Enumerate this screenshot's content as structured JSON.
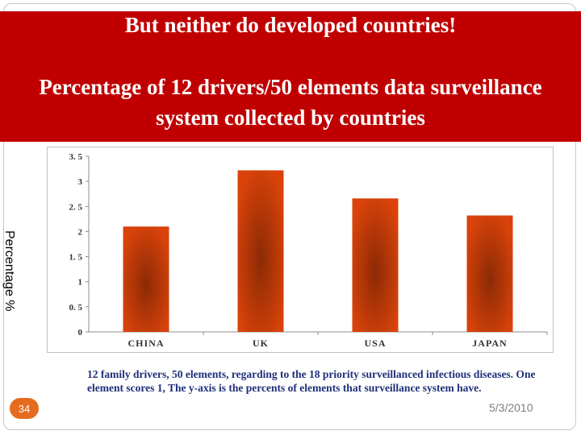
{
  "slide": {
    "title_line1": "But neither  do developed countries!",
    "title_line2": "Percentage of 12 drivers/50 elements data surveillance system collected by countries",
    "footnote": "12 family drivers, 50 elements, regarding to the 18 priority surveillanced infectious diseases. One element scores 1, The y-axis is the percents of elements that surveillance system have.",
    "page_number": "34",
    "date": "5/3/2010",
    "title_band_color": "#c00000"
  },
  "chart_data": {
    "type": "bar",
    "categories": [
      "CHINA",
      "UK",
      "USA",
      "JAPAN"
    ],
    "values": [
      2.1,
      3.22,
      2.66,
      2.32
    ],
    "ylabel": "Percentage %",
    "ylim": [
      0,
      3.5
    ],
    "yticks": [
      "0",
      "0. 5",
      "1",
      "1. 5",
      "2",
      "2. 5",
      "3",
      "3. 5"
    ],
    "grid": false,
    "bar_color": "#d9430a",
    "bar_center_color": "#8b2a05"
  }
}
